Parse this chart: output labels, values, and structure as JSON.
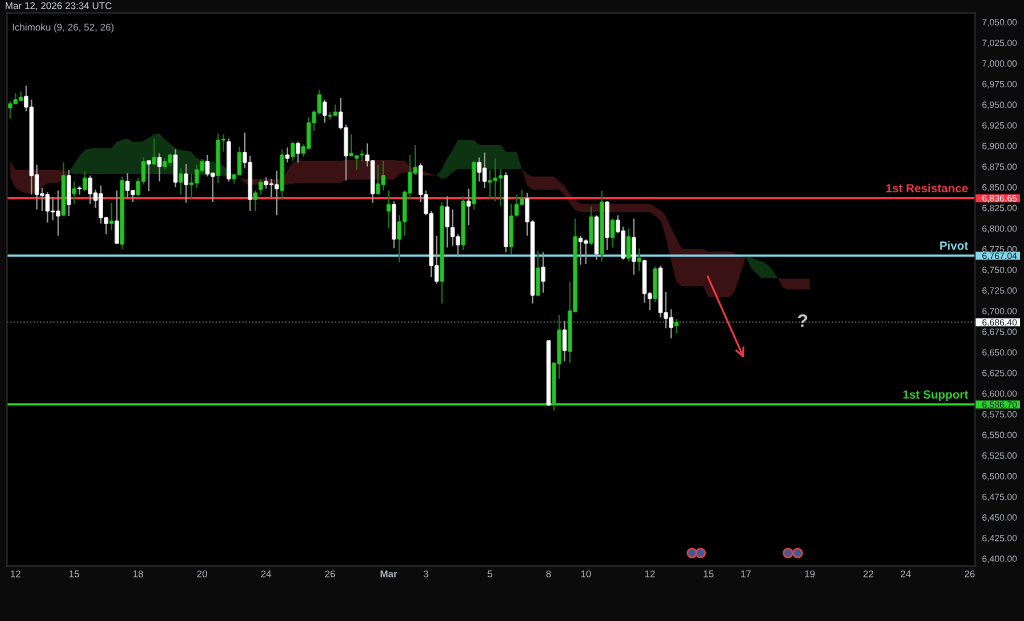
{
  "chart_data": {
    "type": "candlestick",
    "title": "Mar 12, 2026 23:34 UTC",
    "subtitle": "Ichimoku (9, 26, 52, 26)",
    "categories": [
      null,
      "12",
      null,
      null,
      null,
      null,
      null,
      null,
      null,
      null,
      null,
      null,
      "15",
      null,
      null,
      null,
      null,
      null,
      null,
      null,
      null,
      null,
      null,
      null,
      "18",
      null,
      null,
      null,
      null,
      null,
      null,
      null,
      null,
      null,
      null,
      null,
      "20",
      null,
      null,
      null,
      null,
      null,
      null,
      null,
      null,
      null,
      null,
      null,
      "24",
      null,
      null,
      null,
      null,
      null,
      null,
      null,
      null,
      null,
      null,
      null,
      "26",
      null,
      null,
      null,
      null,
      null,
      null,
      null,
      null,
      null,
      null,
      "Mar",
      null,
      null,
      null,
      null,
      null,
      null,
      "3",
      null,
      null,
      null,
      null,
      null,
      null,
      null,
      null,
      null,
      null,
      null,
      "5",
      null,
      null,
      null,
      null,
      null,
      null,
      null,
      null,
      null,
      null,
      "8",
      null,
      null,
      null,
      null,
      null,
      null,
      "10",
      null,
      null,
      null,
      null,
      null,
      null,
      null,
      null,
      null,
      null,
      null,
      "12",
      null,
      null,
      null,
      null,
      null,
      null,
      null,
      null,
      null,
      null,
      "15",
      null,
      null,
      null,
      null,
      null,
      null,
      "17",
      null,
      null,
      null,
      null,
      null,
      null,
      null,
      null,
      null,
      null,
      null,
      "19",
      null,
      null,
      null,
      null,
      null,
      null,
      null,
      null,
      null,
      null,
      "22",
      null,
      null,
      null,
      null,
      null,
      null,
      "24",
      null,
      null,
      null,
      null,
      null,
      null,
      null,
      null,
      null,
      null,
      null,
      "26"
    ],
    "ohlc": [
      [
        6946,
        6954,
        6933,
        6951
      ],
      [
        6951,
        6964,
        6951,
        6956
      ],
      [
        6955,
        6966,
        6955,
        6959
      ],
      [
        6960,
        6973,
        6942,
        6947
      ],
      [
        6947,
        6956,
        6841,
        6864
      ],
      [
        6865,
        6877,
        6823,
        6841
      ],
      [
        6842,
        6849,
        6821,
        6840
      ],
      [
        6841,
        6844,
        6807,
        6821
      ],
      [
        6821,
        6838,
        6810,
        6820
      ],
      [
        6821,
        6846,
        6791,
        6815
      ],
      [
        6816,
        6880,
        6816,
        6864
      ],
      [
        6864,
        6871,
        6815,
        6829
      ],
      [
        6842,
        6857,
        6830,
        6848
      ],
      [
        6849,
        6851,
        6841,
        6848
      ],
      [
        6847,
        6869,
        6845,
        6861
      ],
      [
        6861,
        6864,
        6830,
        6842
      ],
      [
        6843,
        6847,
        6825,
        6834
      ],
      [
        6842,
        6852,
        6806,
        6813
      ],
      [
        6813,
        6814,
        6793,
        6806
      ],
      [
        6806,
        6831,
        6798,
        6809
      ],
      [
        6809,
        6846,
        6781,
        6782
      ],
      [
        6781,
        6863,
        6775,
        6858
      ],
      [
        6857,
        6867,
        6837,
        6846
      ],
      [
        6846,
        6846,
        6832,
        6841
      ],
      [
        6841,
        6861,
        6839,
        6857
      ],
      [
        6857,
        6886,
        6853,
        6881
      ],
      [
        6882,
        6882,
        6845,
        6878
      ],
      [
        6878,
        6909,
        6877,
        6886
      ],
      [
        6886,
        6891,
        6857,
        6875
      ],
      [
        6875,
        6885,
        6871,
        6881
      ],
      [
        6880,
        6891,
        6875,
        6889
      ],
      [
        6889,
        6896,
        6850,
        6856
      ],
      [
        6856,
        6873,
        6841,
        6866
      ],
      [
        6866,
        6878,
        6831,
        6853
      ],
      [
        6853,
        6866,
        6835,
        6855
      ],
      [
        6855,
        6877,
        6849,
        6871
      ],
      [
        6870,
        6884,
        6867,
        6881
      ],
      [
        6881,
        6889,
        6863,
        6866
      ],
      [
        6867,
        6867,
        6832,
        6863
      ],
      [
        6864,
        6915,
        6855,
        6907
      ],
      [
        6907,
        6914,
        6893,
        6908
      ],
      [
        6905,
        6909,
        6857,
        6860
      ],
      [
        6860,
        6866,
        6854,
        6865
      ],
      [
        6865,
        6899,
        6865,
        6892
      ],
      [
        6892,
        6916,
        6873,
        6880
      ],
      [
        6880,
        6888,
        6821,
        6835
      ],
      [
        6835,
        6846,
        6821,
        6843
      ],
      [
        6847,
        6859,
        6841,
        6856
      ],
      [
        6857,
        6862,
        6848,
        6853
      ],
      [
        6854,
        6860,
        6838,
        6853
      ],
      [
        6853,
        6870,
        6816,
        6848
      ],
      [
        6846,
        6896,
        6835,
        6889
      ],
      [
        6889,
        6898,
        6880,
        6885
      ],
      [
        6887,
        6905,
        6882,
        6903
      ],
      [
        6903,
        6905,
        6880,
        6891
      ],
      [
        6891,
        6902,
        6887,
        6899
      ],
      [
        6897,
        6935,
        6897,
        6928
      ],
      [
        6928,
        6943,
        6918,
        6941
      ],
      [
        6940,
        6968,
        6938,
        6962
      ],
      [
        6953,
        6956,
        6928,
        6937
      ],
      [
        6936,
        6941,
        6932,
        6937
      ],
      [
        6937,
        6950,
        6936,
        6941
      ],
      [
        6941,
        6958,
        6920,
        6922
      ],
      [
        6922,
        6926,
        6858,
        6888
      ],
      [
        6888,
        6914,
        6888,
        6891
      ],
      [
        6885,
        6888,
        6871,
        6888
      ],
      [
        6889,
        6895,
        6881,
        6890
      ],
      [
        6889,
        6903,
        6875,
        6882
      ],
      [
        6882,
        6883,
        6831,
        6842
      ],
      [
        6842,
        6877,
        6841,
        6854
      ],
      [
        6853,
        6882,
        6846,
        6864
      ],
      [
        6821,
        6846,
        6800,
        6829
      ],
      [
        6829,
        6833,
        6776,
        6787
      ],
      [
        6787,
        6816,
        6759,
        6808
      ],
      [
        6808,
        6846,
        6791,
        6844
      ],
      [
        6843,
        6889,
        6835,
        6868
      ],
      [
        6867,
        6901,
        6865,
        6874
      ],
      [
        6876,
        6879,
        6832,
        6841
      ],
      [
        6841,
        6846,
        6816,
        6818
      ],
      [
        6818,
        6821,
        6741,
        6755
      ],
      [
        6755,
        6791,
        6733,
        6736
      ],
      [
        6736,
        6832,
        6709,
        6827
      ],
      [
        6826,
        6839,
        6777,
        6802
      ],
      [
        6801,
        6823,
        6779,
        6790
      ],
      [
        6790,
        6793,
        6765,
        6780
      ],
      [
        6780,
        6839,
        6774,
        6833
      ],
      [
        6833,
        6848,
        6804,
        6827
      ],
      [
        6830,
        6882,
        6823,
        6880
      ],
      [
        6880,
        6886,
        6857,
        6868
      ],
      [
        6873,
        6892,
        6849,
        6857
      ],
      [
        6856,
        6871,
        6835,
        6858
      ],
      [
        6858,
        6885,
        6833,
        6861
      ],
      [
        6861,
        6872,
        6827,
        6864
      ],
      [
        6864,
        6868,
        6771,
        6778
      ],
      [
        6778,
        6830,
        6769,
        6815
      ],
      [
        6816,
        6841,
        6814,
        6829
      ],
      [
        6829,
        6847,
        6829,
        6836
      ],
      [
        6836,
        6843,
        6791,
        6808
      ],
      [
        6808,
        6810,
        6709,
        6719
      ],
      [
        6719,
        6773,
        6719,
        6752
      ],
      [
        6753,
        6771,
        6722,
        6736
      ],
      [
        6664,
        6664,
        6585,
        6586
      ],
      [
        6587,
        6637,
        6579,
        6637
      ],
      [
        6636,
        6695,
        6618,
        6677
      ],
      [
        6677,
        6688,
        6639,
        6652
      ],
      [
        6651,
        6735,
        6637,
        6700
      ],
      [
        6699,
        6812,
        6699,
        6790
      ],
      [
        6788,
        6791,
        6756,
        6784
      ],
      [
        6785,
        6787,
        6757,
        6782
      ],
      [
        6782,
        6827,
        6780,
        6814
      ],
      [
        6814,
        6816,
        6762,
        6769
      ],
      [
        6769,
        6846,
        6760,
        6832
      ],
      [
        6832,
        6833,
        6774,
        6789
      ],
      [
        6789,
        6812,
        6777,
        6810
      ],
      [
        6810,
        6816,
        6794,
        6796
      ],
      [
        6797,
        6802,
        6762,
        6764
      ],
      [
        6764,
        6800,
        6760,
        6790
      ],
      [
        6789,
        6812,
        6744,
        6760
      ],
      [
        6760,
        6776,
        6748,
        6764
      ],
      [
        6761,
        6762,
        6710,
        6721
      ],
      [
        6721,
        6723,
        6701,
        6715
      ],
      [
        6715,
        6754,
        6711,
        6751
      ],
      [
        6752,
        6755,
        6692,
        6698
      ],
      [
        6698,
        6723,
        6679,
        6691
      ],
      [
        6692,
        6702,
        6667,
        6680
      ],
      [
        6682,
        6690,
        6673,
        6686.4
      ],
      null,
      null,
      null,
      null,
      null,
      null,
      null,
      null,
      null,
      null,
      null,
      null,
      null,
      null,
      null,
      null,
      null,
      null,
      null,
      null,
      null,
      null,
      null,
      null,
      null,
      null,
      null,
      null,
      null,
      null,
      null,
      null,
      null,
      null,
      null,
      null,
      null,
      null,
      null,
      null,
      null,
      null,
      null,
      null,
      null,
      null,
      null,
      null,
      null,
      null,
      null,
      null,
      null,
      null,
      null
    ],
    "colors": [
      "#21c821",
      "#21c821",
      "#21c821",
      "#ffffff",
      "#ffffff",
      "#ffffff",
      "#ffffff",
      "#ffffff",
      "#ffffff",
      "#ffffff",
      "#21c821",
      "#ffffff",
      "#21c821",
      "#ffffff",
      "#21c821",
      "#ffffff",
      "#ffffff",
      "#ffffff",
      "#ffffff",
      "#21c821",
      "#ffffff",
      "#21c821",
      "#ffffff",
      "#ffffff",
      "#21c821",
      "#21c821",
      "#ffffff",
      "#21c821",
      "#ffffff",
      "#21c821",
      "#21c821",
      "#ffffff",
      "#21c821",
      "#ffffff",
      "#21c821",
      "#21c821",
      "#21c821",
      "#ffffff",
      "#ffffff",
      "#21c821",
      "#21c821",
      "#ffffff",
      "#21c821",
      "#21c821",
      "#ffffff",
      "#ffffff",
      "#21c821",
      "#21c821",
      "#ffffff",
      "#ffffff",
      "#ffffff",
      "#21c821",
      "#ffffff",
      "#21c821",
      "#ffffff",
      "#21c821",
      "#21c821",
      "#21c821",
      "#21c821",
      "#ffffff",
      "#21c821",
      "#21c821",
      "#ffffff",
      "#ffffff",
      "#21c821",
      "#21c821",
      "#21c821",
      "#ffffff",
      "#ffffff",
      "#21c821",
      "#21c821",
      "#21c821",
      "#ffffff",
      "#21c821",
      "#21c821",
      "#21c821",
      "#21c821",
      "#ffffff",
      "#ffffff",
      "#ffffff",
      "#ffffff",
      "#21c821",
      "#ffffff",
      "#ffffff",
      "#ffffff",
      "#21c821",
      "#ffffff",
      "#21c821",
      "#ffffff",
      "#ffffff",
      "#21c821",
      "#21c821",
      "#21c821",
      "#ffffff",
      "#21c821",
      "#21c821",
      "#21c821",
      "#ffffff",
      "#ffffff",
      "#21c821",
      "#ffffff",
      "#ffffff",
      "#21c821",
      "#21c821",
      "#ffffff",
      "#21c821",
      "#21c821",
      "#ffffff",
      "#ffffff",
      "#21c821",
      "#ffffff",
      "#21c821",
      "#ffffff",
      "#21c821",
      "#ffffff",
      "#ffffff",
      "#21c821",
      "#ffffff",
      "#21c821",
      "#ffffff",
      "#ffffff",
      "#21c821",
      "#ffffff",
      "#ffffff",
      "#ffffff",
      "#21c821",
      null,
      null,
      null,
      null,
      null,
      null,
      null,
      null,
      null,
      null,
      null,
      null,
      null,
      null,
      null,
      null,
      null,
      null,
      null,
      null,
      null,
      null,
      null,
      null,
      null,
      null,
      null,
      null,
      null,
      null,
      null,
      null,
      null,
      null,
      null,
      null,
      null,
      null,
      null,
      null,
      null,
      null,
      null,
      null,
      null,
      null,
      null,
      null,
      null,
      null,
      null,
      null,
      null,
      null,
      null
    ],
    "series": [
      {
        "type": "line",
        "color": "#3a1214",
        "values": [
          null,
          null,
          null,
          null,
          null,
          null,
          null,
          null,
          null,
          null,
          null,
          null,
          null,
          null,
          null,
          null,
          null,
          null,
          null,
          null,
          null,
          null,
          null,
          null,
          null,
          null,
          null,
          null,
          null,
          null,
          null,
          null,
          null,
          null,
          null,
          null,
          null,
          null,
          null,
          null,
          null,
          null,
          null,
          null,
          null,
          null,
          null,
          null,
          null,
          null,
          null,
          null,
          null,
          null,
          null,
          null,
          null,
          null,
          null,
          null,
          null,
          null,
          null,
          null,
          null,
          null,
          null,
          null,
          null,
          null,
          null,
          null,
          null,
          null,
          null,
          null,
          null,
          null,
          null,
          null,
          null,
          null,
          null,
          null,
          null,
          null,
          null,
          null,
          null,
          null,
          null,
          null,
          null,
          null,
          null,
          null,
          null,
          null,
          null,
          null,
          null,
          null,
          null,
          null,
          null,
          null,
          null,
          null,
          null,
          null,
          null,
          null,
          null,
          null,
          null,
          null,
          null,
          null,
          null,
          null,
          null,
          null,
          null,
          null,
          null,
          null,
          null,
          null,
          null,
          null,
          null,
          null,
          null,
          null,
          null,
          null,
          null,
          null,
          null,
          null,
          null,
          null,
          null,
          null,
          null,
          null,
          null,
          null,
          null,
          null,
          null,
          null,
          null,
          null,
          null,
          null,
          null,
          null,
          null,
          null,
          null,
          null,
          null,
          null,
          null,
          null,
          null,
          null,
          null,
          null,
          null,
          null,
          null,
          null,
          null,
          null,
          null,
          null,
          null,
          null,
          null
        ],
        "upper": [
          6881,
          6871,
          6871,
          6871,
          6871,
          6871,
          6871,
          6871,
          6871,
          6871,
          6870,
          6868,
          null,
          null,
          null,
          null,
          null,
          null,
          null,
          null,
          null,
          null,
          null,
          null,
          null,
          null,
          null,
          null,
          null,
          null,
          null,
          null,
          null,
          null,
          null,
          null,
          null,
          null,
          null,
          null,
          null,
          null,
          null,
          6861,
          6860,
          6860,
          6860,
          6860,
          6860,
          6860,
          6860,
          6860,
          6870,
          6880,
          6882,
          6882,
          6882,
          6882,
          6882,
          6882,
          6882,
          6882,
          6882,
          6883,
          6883,
          6883,
          6883,
          6883,
          6883,
          6883,
          6883,
          6883,
          6883,
          6882,
          6882,
          6875,
          6872,
          6870,
          6868,
          6866,
          6864,
          null,
          null,
          null,
          null,
          null,
          null,
          null,
          null,
          null,
          null,
          null,
          null,
          null,
          null,
          null,
          6872,
          6866,
          6863,
          6863,
          6863,
          6863,
          6863,
          6857,
          6851,
          6842,
          6835,
          6830,
          6830,
          6830,
          6830,
          6830,
          6830,
          6830,
          6830,
          6830,
          6830,
          6830,
          6830,
          6830,
          6830,
          6826,
          6822,
          6815,
          6800,
          6788,
          6775,
          6775,
          6775,
          6775,
          6775,
          6772,
          6772,
          6772,
          6772,
          6772,
          6770,
          6767,
          6765,
          null,
          null,
          null,
          null,
          null,
          6740,
          6739,
          6739,
          6739,
          6739,
          6739,
          6739,
          null,
          null,
          null,
          null,
          null,
          null,
          null,
          null,
          null,
          null,
          null,
          null,
          null,
          null,
          null,
          null,
          null,
          null,
          null,
          null,
          null,
          null,
          null,
          null,
          null,
          null,
          null,
          null,
          null,
          null
        ],
        "lower": [
          6862,
          6849,
          6845,
          6843,
          6843,
          6843,
          6850,
          6855,
          6855,
          6855,
          6860,
          6868,
          null,
          null,
          null,
          null,
          null,
          null,
          null,
          null,
          null,
          null,
          null,
          null,
          null,
          null,
          null,
          null,
          null,
          null,
          null,
          null,
          null,
          null,
          null,
          null,
          null,
          null,
          null,
          null,
          null,
          null,
          null,
          6861,
          6855,
          6853,
          6853,
          6853,
          6853,
          6853,
          6853,
          6853,
          6853,
          6854,
          6855,
          6855,
          6855,
          6855,
          6855,
          6855,
          6855,
          6855,
          6855,
          6859,
          6859,
          6859,
          6859,
          6859,
          6859,
          6859,
          6859,
          6859,
          6859,
          6866,
          6868,
          6866,
          6865,
          6864,
          6864,
          6864,
          6864,
          null,
          null,
          null,
          null,
          null,
          null,
          null,
          null,
          null,
          null,
          null,
          null,
          null,
          null,
          null,
          6872,
          6852,
          6847,
          6847,
          6847,
          6847,
          6847,
          6847,
          6840,
          6830,
          6822,
          6820,
          6820,
          6820,
          6820,
          6820,
          6820,
          6820,
          6820,
          6820,
          6820,
          6820,
          6820,
          6820,
          6820,
          6815,
          6810,
          6790,
          6760,
          6735,
          6730,
          6730,
          6730,
          6730,
          6730,
          6717,
          6717,
          6717,
          6717,
          6717,
          6725,
          6745,
          6765,
          null,
          null,
          null,
          null,
          null,
          6740,
          6728,
          6726,
          6726,
          6726,
          6726,
          6726,
          null,
          null,
          null,
          null,
          null,
          null,
          null,
          null,
          null,
          null,
          null,
          null,
          null,
          null,
          null,
          null,
          null,
          null,
          null,
          null,
          null,
          null,
          null,
          null,
          null,
          null,
          null,
          null,
          null,
          null
        ]
      },
      {
        "type": "line",
        "color": "#0e3312",
        "values": [
          null,
          null,
          null,
          null,
          null,
          null,
          null,
          null,
          null,
          null,
          null,
          null,
          null,
          null,
          null,
          null,
          null,
          null,
          null,
          null,
          null,
          null,
          null,
          null,
          null,
          null,
          null,
          null,
          null,
          null,
          null,
          null,
          null,
          null,
          null,
          null,
          null,
          null,
          null,
          null,
          null,
          null,
          null,
          null,
          null,
          null,
          null,
          null,
          null,
          null,
          null,
          null,
          null,
          null,
          null,
          null,
          null,
          null,
          null,
          null,
          null,
          null,
          null,
          null,
          null,
          null,
          null,
          null,
          null,
          null,
          null,
          null,
          null,
          null,
          null,
          null,
          null,
          null,
          null,
          null,
          null,
          null,
          null,
          null,
          null,
          null,
          null,
          null,
          null,
          null,
          null,
          null,
          null,
          null,
          null,
          null,
          null,
          null,
          null,
          null,
          null,
          null,
          null,
          null,
          null,
          null,
          null,
          null,
          null,
          null,
          null,
          null,
          null,
          null,
          null,
          null,
          null,
          null,
          null,
          null,
          null,
          null,
          null,
          null,
          null,
          null,
          null,
          null,
          null,
          null,
          null,
          null,
          null,
          null,
          null,
          null,
          null,
          null,
          null,
          null,
          null,
          null,
          null,
          null,
          null,
          null,
          null,
          null,
          null,
          null,
          null,
          null,
          null,
          null,
          null,
          null,
          null,
          null,
          null,
          null,
          null,
          null,
          null,
          null,
          null,
          null,
          null,
          null,
          null,
          null,
          null,
          null,
          null,
          null,
          null,
          null,
          null,
          null,
          null,
          null,
          null
        ],
        "upper": [
          null,
          null,
          null,
          null,
          null,
          null,
          null,
          null,
          null,
          null,
          null,
          6868,
          6878,
          6888,
          6895,
          6897,
          6897,
          6897,
          6897,
          6897,
          6905,
          6907,
          6909,
          6905,
          6905,
          6906,
          6910,
          6914,
          6915,
          6908,
          6903,
          6897,
          6895,
          6894,
          6893,
          6885,
          6883,
          6882,
          6881,
          6879,
          6876,
          6870,
          6864,
          6861,
          null,
          null,
          null,
          null,
          null,
          null,
          null,
          null,
          null,
          null,
          null,
          null,
          null,
          null,
          null,
          null,
          null,
          null,
          null,
          null,
          null,
          null,
          null,
          null,
          null,
          null,
          null,
          null,
          null,
          null,
          null,
          null,
          null,
          null,
          null,
          null,
          6864,
          6872,
          6885,
          6895,
          6907,
          6907,
          6907,
          6907,
          6901,
          6901,
          6901,
          6901,
          6901,
          6893,
          6893,
          6893,
          6872,
          null,
          null,
          null,
          null,
          null,
          null,
          null,
          null,
          null,
          null,
          null,
          null,
          null,
          null,
          null,
          null,
          null,
          null,
          null,
          null,
          null,
          null,
          null,
          null,
          null,
          null,
          null,
          null,
          null,
          null,
          null,
          null,
          null,
          null,
          null,
          null,
          null,
          null,
          null,
          null,
          null,
          6765,
          6765,
          6762,
          6760,
          6757,
          6750,
          6740,
          null,
          null,
          null,
          null,
          null,
          null,
          null,
          null,
          null,
          null,
          null,
          null,
          null,
          null,
          null,
          null,
          null,
          null,
          null,
          null,
          null,
          null,
          null,
          null,
          null,
          null,
          null,
          null,
          null,
          null,
          null,
          null,
          null,
          null,
          null,
          null
        ],
        "lower": [
          null,
          null,
          null,
          null,
          null,
          null,
          null,
          null,
          null,
          null,
          null,
          6868,
          6866,
          6866,
          6866,
          6866,
          6866,
          6866,
          6866,
          6866,
          6866,
          6866,
          6866,
          6866,
          6866,
          6866,
          6866,
          6866,
          6866,
          6866,
          6866,
          6866,
          6866,
          6866,
          6866,
          6866,
          6864,
          6864,
          6864,
          6864,
          6864,
          6863,
          6863,
          6861,
          null,
          null,
          null,
          null,
          null,
          null,
          null,
          null,
          null,
          null,
          null,
          null,
          null,
          null,
          null,
          null,
          null,
          null,
          null,
          null,
          null,
          null,
          null,
          null,
          null,
          null,
          null,
          null,
          null,
          null,
          null,
          null,
          null,
          null,
          null,
          null,
          6864,
          6860,
          6862,
          6868,
          6872,
          6872,
          6872,
          6872,
          6872,
          6872,
          6872,
          6872,
          6872,
          6872,
          6872,
          6872,
          6872,
          null,
          null,
          null,
          null,
          null,
          null,
          null,
          null,
          null,
          null,
          null,
          null,
          null,
          null,
          null,
          null,
          null,
          null,
          null,
          null,
          null,
          null,
          null,
          null,
          null,
          null,
          null,
          null,
          null,
          null,
          null,
          null,
          null,
          null,
          null,
          null,
          null,
          null,
          null,
          null,
          null,
          6765,
          6752,
          6745,
          6740,
          6740,
          6740,
          6740,
          null,
          null,
          null,
          null,
          null,
          null,
          null,
          null,
          null,
          null,
          null,
          null,
          null,
          null,
          null,
          null,
          null,
          null,
          null,
          null,
          null,
          null,
          null,
          null,
          null,
          null,
          null,
          null,
          null,
          null,
          null,
          null,
          null,
          null,
          null,
          null
        ]
      }
    ],
    "ylim": [
      6391,
      7061
    ],
    "yticks": [
      {
        "value": 6400,
        "label": "6,400.00"
      },
      {
        "value": 6425,
        "label": "6,425.00"
      },
      {
        "value": 6450,
        "label": "6,450.00"
      },
      {
        "value": 6475,
        "label": "6,475.00"
      },
      {
        "value": 6500,
        "label": "6,500.00"
      },
      {
        "value": 6525,
        "label": "6,525.00"
      },
      {
        "value": 6550,
        "label": "6,550.00"
      },
      {
        "value": 6575,
        "label": "6,575.00"
      },
      {
        "value": 6586.7,
        "label": "6,586.70"
      },
      {
        "value": 6600,
        "label": "6,600.00"
      },
      {
        "value": 6625,
        "label": "6,625.00"
      },
      {
        "value": 6650,
        "label": "6,650.00"
      },
      {
        "value": 6675,
        "label": "6,675.00"
      },
      {
        "value": 6686.4,
        "label": "6,686.40"
      },
      {
        "value": 6700,
        "label": "6,700.00"
      },
      {
        "value": 6725,
        "label": "6,725.00"
      },
      {
        "value": 6750,
        "label": "6,750.00"
      },
      {
        "value": 6767.04,
        "label": "6,767.04"
      },
      {
        "value": 6775,
        "label": "6,775.00"
      },
      {
        "value": 6800,
        "label": "6,800.00"
      },
      {
        "value": 6825,
        "label": "6,825.00"
      },
      {
        "value": 6836.65,
        "label": "6,836.65"
      },
      {
        "value": 6850,
        "label": "6,850.00"
      },
      {
        "value": 6875,
        "label": "6,875.00"
      },
      {
        "value": 6900,
        "label": "6,900.00"
      },
      {
        "value": 6925,
        "label": "6,925.00"
      },
      {
        "value": 6950,
        "label": "6,950.00"
      },
      {
        "value": 6975,
        "label": "6,975.00"
      },
      {
        "value": 7000,
        "label": "7,000.00"
      },
      {
        "value": 7025,
        "label": "7,025.00"
      },
      {
        "value": 7050,
        "label": "7,050.00"
      }
    ],
    "ref_lines": [
      {
        "axis": "y",
        "value": 6836.65,
        "label": "1st Resistance",
        "color": "#f23645"
      },
      {
        "axis": "y",
        "value": 6767.04,
        "label": "Pivot",
        "color": "#80d8ea"
      },
      {
        "axis": "y",
        "value": 6686.4,
        "label": null,
        "color": "#ffffff",
        "line_style": "dotted"
      },
      {
        "axis": "y",
        "value": 6586.7,
        "label": "1st Support",
        "color": "#2ad42a"
      }
    ],
    "annotations": [
      "?"
    ]
  }
}
